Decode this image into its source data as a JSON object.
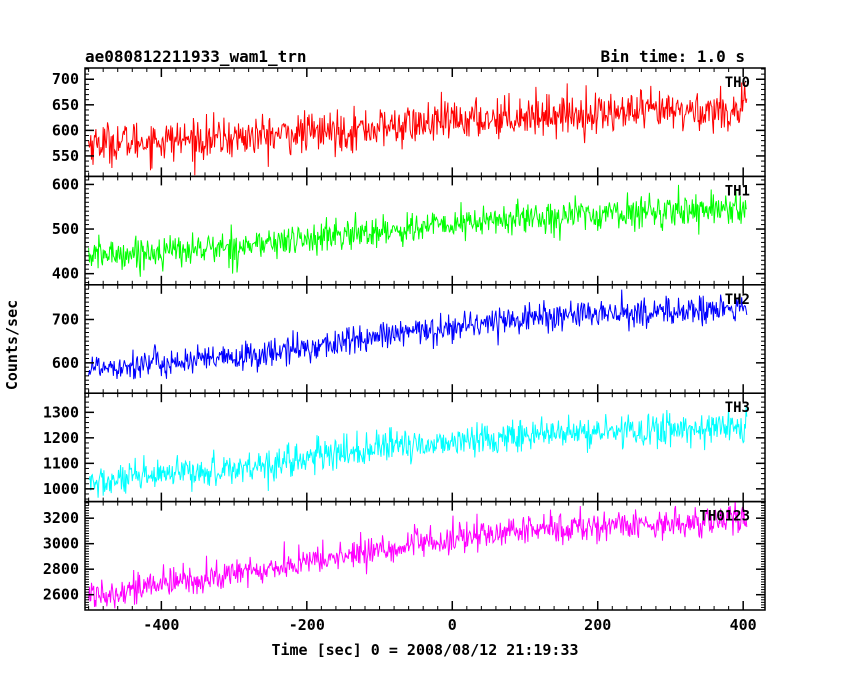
{
  "header": {
    "title": "ae080812211933_wam1_trn",
    "bin_time": "Bin time: 1.0 s"
  },
  "chart_data": {
    "type": "line",
    "xlabel": "Time [sec] 0 = 2008/08/12 21:19:33",
    "ylabel": "Counts/sec",
    "xlim": [
      -505,
      430
    ],
    "x_ticks": [
      -400,
      -200,
      0,
      200,
      400
    ],
    "x_range": [
      -500,
      405
    ],
    "panels": [
      {
        "name": "TH0",
        "color": "#ff0000",
        "ylim": [
          510,
          722
        ],
        "y_ticks": [
          550,
          600,
          650,
          700
        ],
        "trend": [
          [
            -500,
            575
          ],
          [
            -300,
            585
          ],
          [
            -100,
            605
          ],
          [
            100,
            630
          ],
          [
            405,
            640
          ]
        ],
        "noise": 20
      },
      {
        "name": "TH1",
        "color": "#00ff00",
        "ylim": [
          375,
          618
        ],
        "y_ticks": [
          400,
          500,
          600
        ],
        "trend": [
          [
            -500,
            440
          ],
          [
            -300,
            460
          ],
          [
            -100,
            495
          ],
          [
            100,
            525
          ],
          [
            405,
            550
          ]
        ],
        "noise": 18
      },
      {
        "name": "TH2",
        "color": "#0000ff",
        "ylim": [
          530,
          780
        ],
        "y_ticks": [
          600,
          700
        ],
        "trend": [
          [
            -500,
            590
          ],
          [
            -300,
            610
          ],
          [
            -100,
            660
          ],
          [
            100,
            705
          ],
          [
            405,
            725
          ]
        ],
        "noise": 17
      },
      {
        "name": "TH3",
        "color": "#00ffff",
        "ylim": [
          950,
          1375
        ],
        "y_ticks": [
          1000,
          1100,
          1200,
          1300
        ],
        "trend": [
          [
            -500,
            1020
          ],
          [
            -300,
            1080
          ],
          [
            -100,
            1160
          ],
          [
            100,
            1210
          ],
          [
            405,
            1245
          ]
        ],
        "noise": 32
      },
      {
        "name": "TH0123",
        "color": "#ff00ff",
        "ylim": [
          2480,
          3330
        ],
        "y_ticks": [
          2600,
          2800,
          3000,
          3200
        ],
        "trend": [
          [
            -500,
            2600
          ],
          [
            -300,
            2760
          ],
          [
            -100,
            2950
          ],
          [
            100,
            3110
          ],
          [
            405,
            3190
          ]
        ],
        "noise": 60
      }
    ]
  }
}
